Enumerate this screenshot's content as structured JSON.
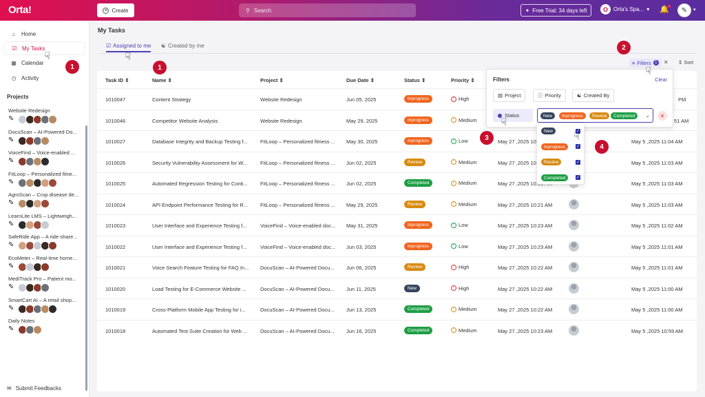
{
  "app": {
    "logo": "Orta!",
    "create_label": "Create",
    "search_placeholder": "Search",
    "trial_label": "Free Trial: 34 days left",
    "space_label": "Orta's Spa..."
  },
  "nav": [
    {
      "label": "Home",
      "icon": "home-icon"
    },
    {
      "label": "My Tasks",
      "icon": "checkbox-icon"
    },
    {
      "label": "Calendar",
      "icon": "calendar-icon"
    },
    {
      "label": "Activity",
      "icon": "activity-icon"
    }
  ],
  "projects_heading": "Projects",
  "projects": [
    "Website Redesign",
    "DocuScan – AI-Powered Do...",
    "VoiceFind – Voice-enabled ...",
    "FitLoop – Personalized fitne...",
    "AgroScan – Crop disease de...",
    "LearnLite LMS – Lightweigh...",
    "SafeRide App – A ride-share...",
    "EcoMeter – Real-time home...",
    "MediTrack Pro – Patient mo...",
    "SmartCart AI – A retail shop...",
    "Daily Notes"
  ],
  "feedback_label": "Submit Feedbacks",
  "page": {
    "title": "My Tasks",
    "tab_assigned": "Assigned to me",
    "tab_created": "Created by me",
    "filters_label": "Filters",
    "filters_count": "1",
    "sort_label": "Sort"
  },
  "columns": [
    "Task ID",
    "Name",
    "Project",
    "Due Date",
    "Status",
    "Priority"
  ],
  "rows": [
    {
      "id": "1010047",
      "name": "Content Strategy",
      "project": "Website Redesign",
      "due": "Jun 05, 2025",
      "status": "Inprogress",
      "priority": "High",
      "created": "",
      "updated": "PM"
    },
    {
      "id": "1010046",
      "name": "Competitor Website Analysis",
      "project": "Website Redesign",
      "due": "May 29, 2025",
      "status": "Inprogress",
      "priority": "Medium",
      "created": "",
      "updated": "51 AM"
    },
    {
      "id": "1010027",
      "name": "Database Integrity and Backup Testing f...",
      "project": "FitLoop – Personalized fitness ...",
      "due": "May 30, 2025",
      "status": "Inprogress",
      "priority": "Low",
      "created": "May 27 ,2025 10:21 AM",
      "updated": "May 5 ,2025 11:04 AM"
    },
    {
      "id": "1010026",
      "name": "Security Vulnerability Assessment for W...",
      "project": "FitLoop – Personalized fitness ...",
      "due": "Jun 02, 2025",
      "status": "Review",
      "priority": "Medium",
      "created": "May 27 ,2025 10:21 AM",
      "updated": "May 5 ,2025 11:03 AM"
    },
    {
      "id": "1010025",
      "name": "Automated Regression Testing for Conti...",
      "project": "FitLoop – Personalized fitness ...",
      "due": "Jun 02, 2025",
      "status": "Completed",
      "priority": "Medium",
      "created": "May 27 ,2025 10:21 AM",
      "updated": "May 5 ,2025 11:03 AM"
    },
    {
      "id": "1010024",
      "name": "API Endpoint Performance Testing for R...",
      "project": "FitLoop – Personalized fitness ...",
      "due": "May 29, 2025",
      "status": "Review",
      "priority": "Medium",
      "created": "May 27 ,2025 10:21 AM",
      "updated": "May 5 ,2025 11:03 AM"
    },
    {
      "id": "1010023",
      "name": "User Interface and Experience Testing f...",
      "project": "VoiceFind – Voice-enabled doc...",
      "due": "May 31, 2025",
      "status": "Inprogress",
      "priority": "Low",
      "created": "May 27 ,2025 10:23 AM",
      "updated": "May 5 ,2025 11:02 AM"
    },
    {
      "id": "1010022",
      "name": "User Interface and Experience Testing f...",
      "project": "VoiceFind – Voice-enabled doc...",
      "due": "Jun 03, 2025",
      "status": "Inprogress",
      "priority": "Low",
      "created": "May 27 ,2025 10:23 AM",
      "updated": "May 5 ,2025 11:01 AM"
    },
    {
      "id": "1010021",
      "name": "Voice Search Feature Testing for FAQ In...",
      "project": "DocuScan – AI-Powered Docu...",
      "due": "Jun 06, 2025",
      "status": "Review",
      "priority": "High",
      "created": "May 27 ,2025 10:22 AM",
      "updated": "May 5 ,2025 11:01 AM"
    },
    {
      "id": "1010020",
      "name": "Load Testing for E-Commerce Website ...",
      "project": "DocuScan – AI-Powered Docu...",
      "due": "Jun 11, 2025",
      "status": "New",
      "priority": "High",
      "created": "May 27 ,2025 10:22 AM",
      "updated": "May 5 ,2025 11:00 AM"
    },
    {
      "id": "1010019",
      "name": "Cross-Platform Mobile App Testing for i...",
      "project": "DocuScan – AI-Powered Docu...",
      "due": "Jun 13, 2025",
      "status": "Completed",
      "priority": "Medium",
      "created": "May 27 ,2025 10:22 AM",
      "updated": "May 5 ,2025 11:00 AM"
    },
    {
      "id": "1010018",
      "name": "Automated Test Suite Creation for Web ...",
      "project": "DocuScan – AI-Powered Docu...",
      "due": "Jun 16, 2025",
      "status": "Completed",
      "priority": "Medium",
      "created": "May 27 ,2025 10:23 AM",
      "updated": "May 5 ,2025 10:59 AM"
    }
  ],
  "filter_panel": {
    "title": "Filters",
    "clear": "Clear",
    "chips": [
      "Project",
      "Priority",
      "Created By"
    ],
    "status_chip": "Status",
    "selected": [
      "New",
      "Inprogress",
      "Review",
      "Completed"
    ]
  },
  "dropdown": [
    "New",
    "Inprogress",
    "Review",
    "Completed"
  ],
  "markers": [
    "1",
    "1",
    "2",
    "3",
    "4"
  ],
  "colors": {
    "brand": "#e0104f",
    "accent": "#4a3fb3",
    "inprogress": "#f0651f",
    "review": "#d98b12",
    "completed": "#1e9e45",
    "new": "#37455c"
  }
}
